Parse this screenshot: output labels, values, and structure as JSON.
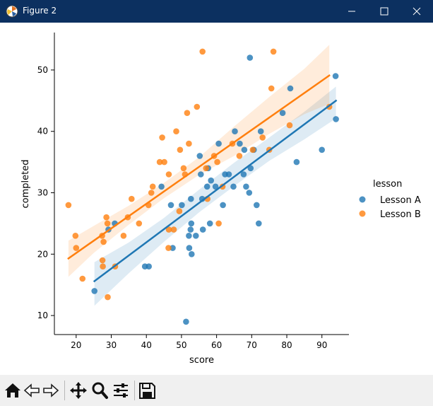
{
  "window": {
    "title": "Figure 2"
  },
  "toolbar": {
    "buttons": [
      "home-icon",
      "back-icon",
      "forward-icon",
      "pan-icon",
      "zoom-icon",
      "configure-subplots-icon",
      "save-icon"
    ]
  },
  "colors": {
    "lesson_a": "#1f77b4",
    "lesson_b": "#ff7f0e",
    "titlebar": "#0c3060"
  },
  "chart_data": {
    "type": "scatter",
    "xlabel": "score",
    "ylabel": "completed",
    "xlim": [
      13.8,
      97.7
    ],
    "ylim": [
      6.9,
      56.1
    ],
    "xticks": [
      20,
      30,
      40,
      50,
      60,
      70,
      80,
      90
    ],
    "yticks": [
      10,
      20,
      30,
      40,
      50
    ],
    "grid": false,
    "legend": {
      "title": "lesson",
      "placement": "right",
      "entries": [
        "Lesson A",
        "Lesson B"
      ]
    },
    "series": [
      {
        "name": "Lesson A",
        "color": "#1f77b4",
        "points": [
          [
            25.2,
            14
          ],
          [
            29.2,
            24
          ],
          [
            31.0,
            25
          ],
          [
            39.6,
            18
          ],
          [
            40.7,
            18
          ],
          [
            44.3,
            31
          ],
          [
            47.0,
            28
          ],
          [
            47.5,
            21
          ],
          [
            50.1,
            28
          ],
          [
            51.3,
            9
          ],
          [
            52.1,
            23
          ],
          [
            52.2,
            21
          ],
          [
            52.7,
            29
          ],
          [
            52.6,
            24
          ],
          [
            52.8,
            25
          ],
          [
            52.9,
            20
          ],
          [
            54.1,
            23
          ],
          [
            55.2,
            36
          ],
          [
            55.5,
            33
          ],
          [
            55.9,
            29
          ],
          [
            56.1,
            24
          ],
          [
            57.3,
            31
          ],
          [
            57.6,
            34
          ],
          [
            58.1,
            25
          ],
          [
            58.4,
            32
          ],
          [
            59.7,
            31
          ],
          [
            60.6,
            38
          ],
          [
            61.8,
            28
          ],
          [
            62.4,
            33
          ],
          [
            63.5,
            33
          ],
          [
            64.8,
            31
          ],
          [
            65.2,
            40
          ],
          [
            66.6,
            38
          ],
          [
            67.7,
            33
          ],
          [
            67.9,
            37
          ],
          [
            68.4,
            31
          ],
          [
            69.3,
            30
          ],
          [
            69.5,
            52
          ],
          [
            69.7,
            34
          ],
          [
            70.6,
            37
          ],
          [
            71.4,
            28
          ],
          [
            72.0,
            25
          ],
          [
            72.6,
            40
          ],
          [
            78.8,
            43
          ],
          [
            81.0,
            47
          ],
          [
            82.8,
            35
          ],
          [
            90.0,
            37
          ],
          [
            93.9,
            49
          ],
          [
            94.0,
            42
          ]
        ],
        "fit": {
          "x": [
            25.2,
            94.0
          ],
          "y": [
            15.6,
            45.0
          ]
        },
        "ci_upper": [
          [
            25.2,
            18.7
          ],
          [
            35,
            21.9
          ],
          [
            45,
            25.9
          ],
          [
            55,
            30.5
          ],
          [
            65,
            34.9
          ],
          [
            75,
            39.0
          ],
          [
            85,
            43.2
          ],
          [
            94,
            47.3
          ]
        ],
        "ci_lower": [
          [
            25.2,
            11.6
          ],
          [
            35,
            16.9
          ],
          [
            45,
            22.0
          ],
          [
            55,
            26.8
          ],
          [
            65,
            31.1
          ],
          [
            75,
            35.2
          ],
          [
            85,
            38.7
          ],
          [
            94,
            42.1
          ]
        ]
      },
      {
        "name": "Lesson B",
        "color": "#ff7f0e",
        "points": [
          [
            17.8,
            28
          ],
          [
            19.8,
            23
          ],
          [
            20.0,
            21
          ],
          [
            21.8,
            16
          ],
          [
            27.4,
            23
          ],
          [
            27.5,
            19
          ],
          [
            27.6,
            18
          ],
          [
            27.8,
            22
          ],
          [
            28.6,
            26
          ],
          [
            28.9,
            25
          ],
          [
            29.0,
            13
          ],
          [
            31.1,
            18
          ],
          [
            33.5,
            23
          ],
          [
            34.7,
            26
          ],
          [
            35.8,
            29
          ],
          [
            37.9,
            25
          ],
          [
            40.6,
            28
          ],
          [
            41.4,
            30
          ],
          [
            41.8,
            31
          ],
          [
            43.8,
            35
          ],
          [
            44.5,
            39
          ],
          [
            45.1,
            35
          ],
          [
            46.3,
            21
          ],
          [
            46.4,
            33
          ],
          [
            46.4,
            24
          ],
          [
            47.8,
            24
          ],
          [
            48.5,
            40
          ],
          [
            49.4,
            27
          ],
          [
            49.6,
            37
          ],
          [
            50.6,
            34
          ],
          [
            51.0,
            33
          ],
          [
            51.6,
            43
          ],
          [
            52.1,
            38
          ],
          [
            54.4,
            44
          ],
          [
            56.0,
            53
          ],
          [
            57.0,
            34
          ],
          [
            57.4,
            29
          ],
          [
            59.3,
            36
          ],
          [
            60.2,
            35
          ],
          [
            60.6,
            25
          ],
          [
            61.7,
            31
          ],
          [
            64.5,
            38
          ],
          [
            66.5,
            36
          ],
          [
            70.3,
            37
          ],
          [
            73.1,
            39
          ],
          [
            75.0,
            37
          ],
          [
            75.6,
            47
          ],
          [
            76.2,
            53
          ],
          [
            80.8,
            41
          ],
          [
            92.1,
            44
          ]
        ],
        "fit": {
          "x": [
            17.8,
            92.1
          ],
          "y": [
            19.3,
            49.1
          ]
        },
        "ci_upper": [
          [
            17.8,
            22.2
          ],
          [
            25,
            24.6
          ],
          [
            35,
            27.9
          ],
          [
            45,
            31.6
          ],
          [
            55,
            35.8
          ],
          [
            65,
            40.8
          ],
          [
            75,
            45.6
          ],
          [
            85,
            50.2
          ],
          [
            92.1,
            54.1
          ]
        ],
        "ci_lower": [
          [
            17.8,
            16.3
          ],
          [
            25,
            20.2
          ],
          [
            35,
            24.8
          ],
          [
            45,
            29.1
          ],
          [
            55,
            32.9
          ],
          [
            65,
            36.0
          ],
          [
            75,
            39.6
          ],
          [
            85,
            42.8
          ],
          [
            92.1,
            44.5
          ]
        ]
      }
    ]
  }
}
